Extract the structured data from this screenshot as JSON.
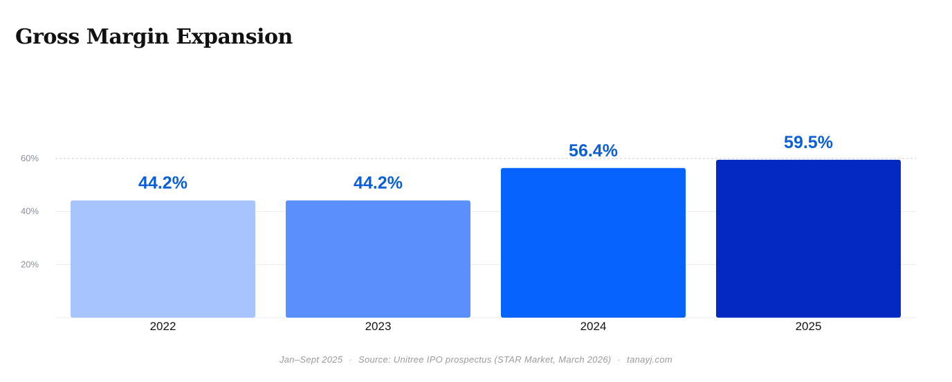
{
  "title": "Gross Margin Expansion",
  "chart_data": {
    "type": "bar",
    "categories": [
      "2022",
      "2023",
      "2024",
      "2025"
    ],
    "values": [
      44.2,
      44.2,
      56.4,
      59.5
    ],
    "value_labels": [
      "44.2%",
      "44.2%",
      "56.4%",
      "59.5%"
    ],
    "bar_colors": [
      "#a8c4ff",
      "#5b8ffb",
      "#0763fe",
      "#0329c2"
    ],
    "value_label_color": "#0a5fd8",
    "ylim": [
      0,
      60
    ],
    "yticks": [
      20,
      40,
      60
    ],
    "ytick_labels": [
      "20%",
      "40%",
      "60%"
    ],
    "xlabel": "",
    "ylabel": "",
    "grid": true
  },
  "footer": {
    "period": "Jan–Sept 2025",
    "source": "Source: Unitree IPO prospectus (STAR Market, March 2026)",
    "site": "tanayj.com",
    "separator": "·"
  }
}
